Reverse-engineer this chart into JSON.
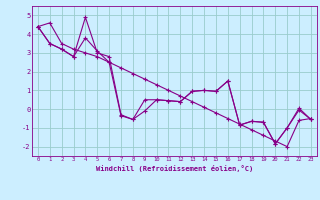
{
  "xlabel": "Windchill (Refroidissement éolien,°C)",
  "background_color": "#cceeff",
  "line_color": "#880088",
  "grid_color": "#99cccc",
  "xlim": [
    -0.5,
    23.5
  ],
  "ylim": [
    -2.5,
    5.5
  ],
  "yticks": [
    -2,
    -1,
    0,
    1,
    2,
    3,
    4,
    5
  ],
  "xticks": [
    0,
    1,
    2,
    3,
    4,
    5,
    6,
    7,
    8,
    9,
    10,
    11,
    12,
    13,
    14,
    15,
    16,
    17,
    18,
    19,
    20,
    21,
    22,
    23
  ],
  "series": [
    [
      4.4,
      4.6,
      3.5,
      3.2,
      3.0,
      2.8,
      2.5,
      2.2,
      1.9,
      1.6,
      1.3,
      1.0,
      0.7,
      0.4,
      0.1,
      -0.2,
      -0.5,
      -0.8,
      -1.1,
      -1.4,
      -1.7,
      -2.0,
      -0.6,
      -0.5
    ],
    [
      4.4,
      3.5,
      3.2,
      2.8,
      4.9,
      3.0,
      2.8,
      -0.3,
      -0.55,
      -0.1,
      0.5,
      0.45,
      0.4,
      0.95,
      1.0,
      0.95,
      1.5,
      -0.85,
      -0.65,
      -0.7,
      -1.85,
      -1.0,
      -0.05,
      -0.55
    ],
    [
      4.4,
      3.5,
      3.2,
      2.8,
      3.8,
      3.1,
      2.5,
      -0.35,
      -0.55,
      0.5,
      0.5,
      0.45,
      0.4,
      0.95,
      1.0,
      0.95,
      1.5,
      -0.85,
      -0.65,
      -0.7,
      -1.85,
      -1.0,
      0.05,
      -0.55
    ]
  ]
}
